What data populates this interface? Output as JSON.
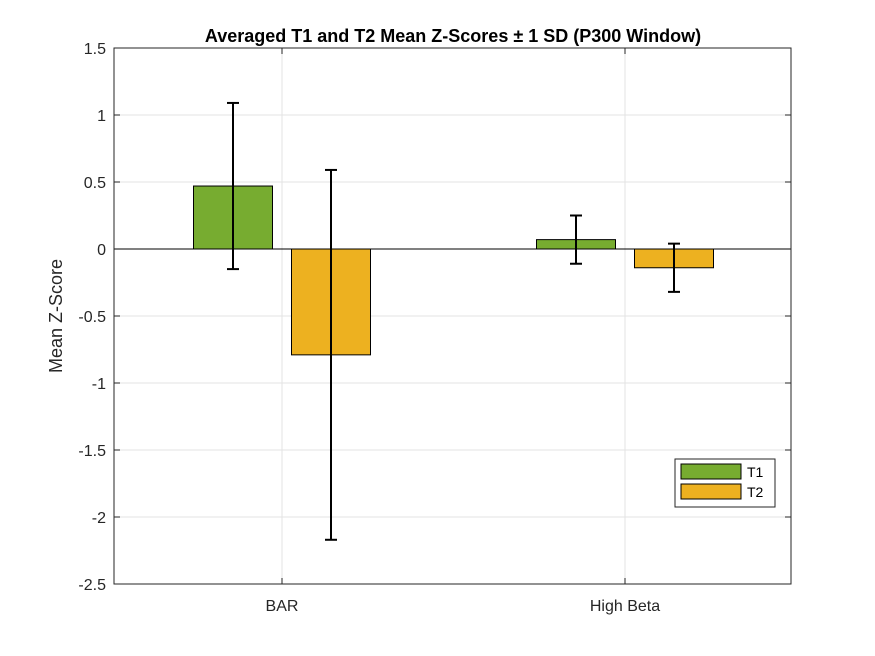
{
  "chart_data": {
    "type": "bar",
    "title": "Averaged T1 and T2 Mean Z-Scores ± 1 SD (P300 Window)",
    "xlabel": "",
    "ylabel": "Mean Z-Score",
    "categories": [
      "BAR",
      "High Beta"
    ],
    "ylim": [
      -2.5,
      1.5
    ],
    "yticks": [
      1.5,
      1,
      0.5,
      0,
      -0.5,
      -1,
      -1.5,
      -2,
      -2.5
    ],
    "ytick_labels": [
      "1.5",
      "1",
      "0.5",
      "0",
      "-0.5",
      "-1",
      "-1.5",
      "-2",
      "-2.5"
    ],
    "grid": true,
    "legend_position": "bottom-right",
    "series": [
      {
        "name": "T1",
        "color": "#77AC30",
        "values": [
          0.47,
          0.07
        ],
        "sd": [
          0.62,
          0.18
        ]
      },
      {
        "name": "T2",
        "color": "#EDB120",
        "values": [
          -0.79,
          -0.14
        ],
        "sd": [
          1.38,
          0.18
        ]
      }
    ]
  }
}
